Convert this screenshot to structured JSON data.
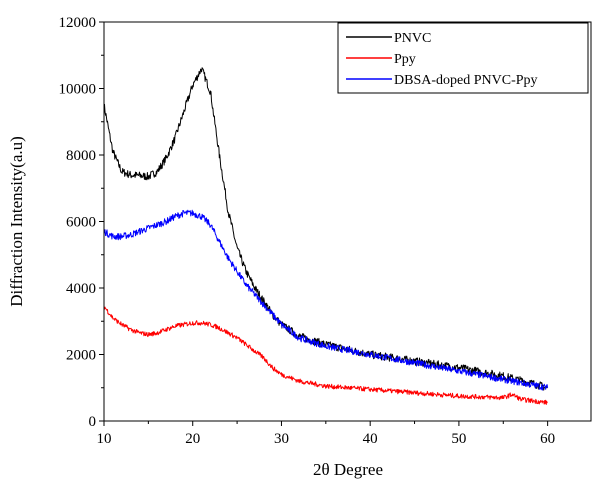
{
  "chart_data": {
    "type": "line",
    "title": "",
    "xlabel": "2θ Degree",
    "ylabel": "Diffraction Intensity(a.u)",
    "xlim": [
      10,
      65
    ],
    "ylim": [
      0,
      12000
    ],
    "xticks": [
      10,
      20,
      30,
      40,
      50,
      60
    ],
    "yticks": [
      0,
      2000,
      4000,
      6000,
      8000,
      10000,
      12000
    ],
    "grid": false,
    "legend_position": "top-right",
    "series": [
      {
        "name": "PNVC",
        "color": "#000000",
        "noise": 120,
        "points": [
          [
            10,
            9500
          ],
          [
            11,
            8100
          ],
          [
            12,
            7500
          ],
          [
            13,
            7400
          ],
          [
            14,
            7380
          ],
          [
            15,
            7350
          ],
          [
            16,
            7500
          ],
          [
            17,
            7900
          ],
          [
            18,
            8500
          ],
          [
            19,
            9300
          ],
          [
            20,
            10100
          ],
          [
            21,
            10600
          ],
          [
            22,
            9900
          ],
          [
            23,
            8000
          ],
          [
            24,
            6300
          ],
          [
            25,
            5200
          ],
          [
            26,
            4500
          ],
          [
            27,
            4000
          ],
          [
            28,
            3600
          ],
          [
            29,
            3200
          ],
          [
            30,
            2900
          ],
          [
            32,
            2550
          ],
          [
            35,
            2300
          ],
          [
            40,
            2000
          ],
          [
            45,
            1800
          ],
          [
            50,
            1600
          ],
          [
            55,
            1350
          ],
          [
            58,
            1150
          ],
          [
            60,
            1000
          ]
        ]
      },
      {
        "name": "Ppy",
        "color": "#ff0000",
        "noise": 70,
        "points": [
          [
            10,
            3450
          ],
          [
            11,
            3100
          ],
          [
            12,
            2900
          ],
          [
            13,
            2750
          ],
          [
            14,
            2650
          ],
          [
            15,
            2600
          ],
          [
            16,
            2650
          ],
          [
            17,
            2750
          ],
          [
            18,
            2850
          ],
          [
            19,
            2900
          ],
          [
            20,
            2950
          ],
          [
            21,
            2950
          ],
          [
            22,
            2900
          ],
          [
            23,
            2800
          ],
          [
            24,
            2650
          ],
          [
            25,
            2500
          ],
          [
            26,
            2300
          ],
          [
            27,
            2100
          ],
          [
            28,
            1900
          ],
          [
            29,
            1600
          ],
          [
            30,
            1400
          ],
          [
            32,
            1200
          ],
          [
            35,
            1050
          ],
          [
            40,
            950
          ],
          [
            45,
            850
          ],
          [
            50,
            750
          ],
          [
            55,
            700
          ],
          [
            56,
            800
          ],
          [
            57,
            650
          ],
          [
            60,
            550
          ]
        ]
      },
      {
        "name": "DBSA-doped PNVC-Ppy",
        "color": "#0000ff",
        "noise": 100,
        "points": [
          [
            10,
            5700
          ],
          [
            11,
            5550
          ],
          [
            12,
            5550
          ],
          [
            13,
            5600
          ],
          [
            14,
            5700
          ],
          [
            15,
            5800
          ],
          [
            16,
            5900
          ],
          [
            17,
            6000
          ],
          [
            18,
            6150
          ],
          [
            19,
            6250
          ],
          [
            20,
            6250
          ],
          [
            21,
            6150
          ],
          [
            22,
            5900
          ],
          [
            23,
            5400
          ],
          [
            24,
            4900
          ],
          [
            25,
            4500
          ],
          [
            26,
            4100
          ],
          [
            27,
            3800
          ],
          [
            28,
            3500
          ],
          [
            29,
            3200
          ],
          [
            30,
            2900
          ],
          [
            32,
            2500
          ],
          [
            35,
            2250
          ],
          [
            40,
            2000
          ],
          [
            45,
            1750
          ],
          [
            50,
            1500
          ],
          [
            55,
            1250
          ],
          [
            58,
            1100
          ],
          [
            60,
            1000
          ]
        ]
      }
    ]
  }
}
